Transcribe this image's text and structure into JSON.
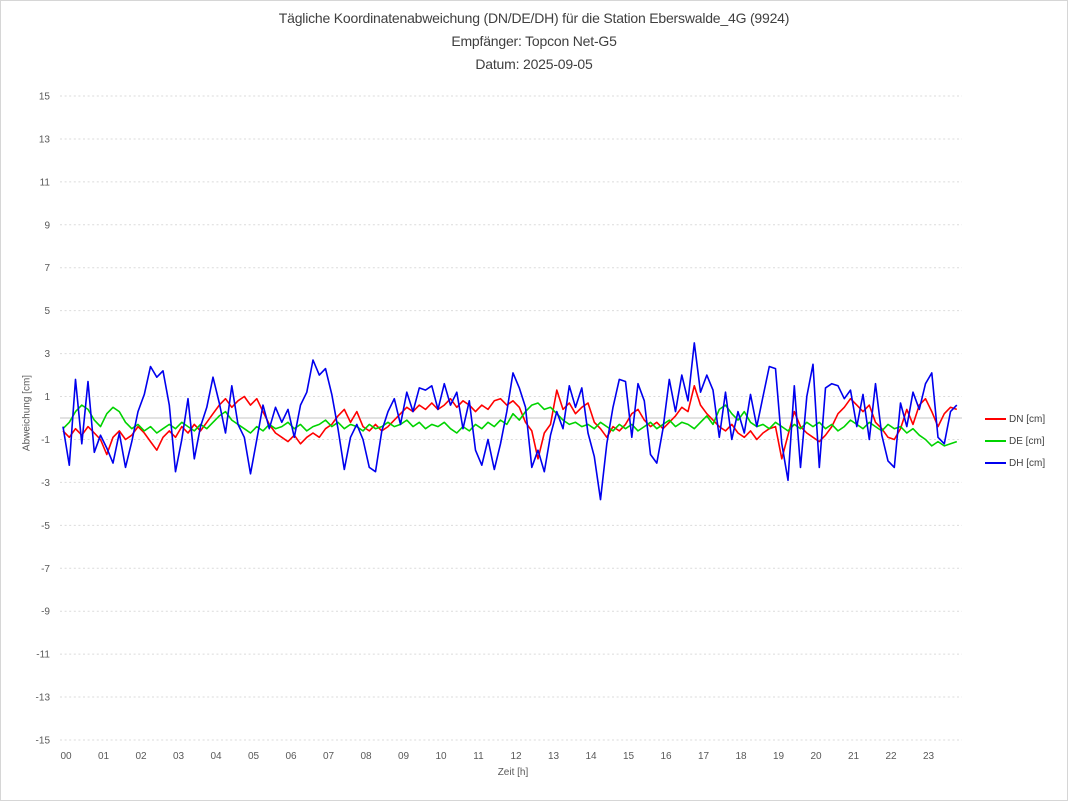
{
  "title": {
    "line1": "Tägliche Koordinatenabweichung (DN/DE/DH) für die Station Eberswalde_4G (9924)",
    "line2": "Empfänger: Topcon Net-G5",
    "line3": "Datum: 2025-09-05"
  },
  "chart_data": {
    "type": "line",
    "title": "Tägliche Koordinatenabweichung (DN/DE/DH) für die Station Eberswalde_4G (9924)",
    "subtitle": "Empfänger: Topcon Net-G5",
    "date_label": "Datum: 2025-09-05",
    "xlabel": "Zeit [h]",
    "ylabel": "Abweichung [cm]",
    "xlim": [
      0,
      24
    ],
    "ylim": [
      -15,
      15
    ],
    "x_ticks": [
      "00",
      "01",
      "02",
      "03",
      "04",
      "05",
      "06",
      "07",
      "08",
      "09",
      "10",
      "11",
      "12",
      "13",
      "14",
      "15",
      "16",
      "17",
      "18",
      "19",
      "20",
      "21",
      "22",
      "23"
    ],
    "y_ticks": [
      15,
      13,
      11,
      9,
      7,
      5,
      3,
      1,
      -1,
      -3,
      -5,
      -7,
      -9,
      -11,
      -13,
      -15
    ],
    "grid": "horizontal dashed gridlines at odd values, solid line at 0, no vertical gridlines",
    "legend_position": "right-middle",
    "x_start": 0,
    "x_step_hours": 0.1666667,
    "series": [
      {
        "name": "DN [cm]",
        "color": "#ff0000",
        "values": [
          -0.6,
          -0.9,
          -0.5,
          -0.8,
          -0.4,
          -0.7,
          -1.0,
          -1.7,
          -0.9,
          -0.6,
          -1.0,
          -0.8,
          -0.4,
          -0.7,
          -1.1,
          -1.5,
          -0.9,
          -0.6,
          -0.9,
          -0.4,
          -0.7,
          -0.3,
          -0.6,
          -0.2,
          0.2,
          0.6,
          0.9,
          0.5,
          0.8,
          1.0,
          0.6,
          0.9,
          0.3,
          -0.3,
          -0.7,
          -0.9,
          -1.1,
          -0.8,
          -1.2,
          -0.9,
          -0.7,
          -0.9,
          -0.5,
          -0.3,
          0.1,
          0.4,
          -0.2,
          0.3,
          -0.4,
          -0.6,
          -0.3,
          -0.6,
          -0.4,
          -0.1,
          0.2,
          0.5,
          0.3,
          0.6,
          0.4,
          0.7,
          0.4,
          0.6,
          0.9,
          0.5,
          0.8,
          0.6,
          0.3,
          0.6,
          0.4,
          0.8,
          0.9,
          0.6,
          0.8,
          0.5,
          -0.2,
          -0.6,
          -1.9,
          -0.7,
          -0.3,
          1.3,
          0.4,
          0.7,
          0.2,
          0.5,
          0.7,
          -0.2,
          -0.5,
          -0.9,
          -0.4,
          -0.6,
          -0.3,
          0.2,
          0.4,
          -0.1,
          -0.4,
          -0.2,
          -0.5,
          -0.2,
          0.1,
          0.5,
          0.3,
          1.5,
          0.6,
          0.2,
          -0.1,
          -0.4,
          -0.6,
          -0.3,
          -0.7,
          -0.9,
          -0.6,
          -1.0,
          -0.7,
          -0.5,
          -0.4,
          -1.9,
          -0.8,
          0.3,
          -0.4,
          -0.7,
          -0.9,
          -1.1,
          -0.8,
          -0.4,
          0.2,
          0.5,
          0.9,
          0.6,
          0.3,
          0.6,
          -0.2,
          -0.5,
          -0.9,
          -1.0,
          -0.5,
          0.4,
          -0.3,
          0.6,
          0.9,
          0.3,
          -0.4,
          0.2,
          0.5,
          0.4
        ]
      },
      {
        "name": "DE [cm]",
        "color": "#00d300",
        "values": [
          -0.5,
          -0.2,
          0.3,
          0.6,
          0.4,
          -0.1,
          -0.4,
          0.2,
          0.5,
          0.3,
          -0.2,
          -0.5,
          -0.3,
          -0.6,
          -0.4,
          -0.7,
          -0.5,
          -0.3,
          -0.5,
          -0.2,
          -0.4,
          -0.6,
          -0.3,
          -0.5,
          -0.2,
          0.1,
          0.3,
          -0.1,
          -0.3,
          -0.5,
          -0.7,
          -0.4,
          -0.6,
          -0.3,
          -0.5,
          -0.4,
          -0.2,
          -0.5,
          -0.3,
          -0.6,
          -0.4,
          -0.3,
          -0.1,
          -0.4,
          -0.2,
          -0.5,
          -0.3,
          -0.4,
          -0.6,
          -0.3,
          -0.5,
          -0.4,
          -0.2,
          -0.4,
          -0.3,
          -0.1,
          -0.4,
          -0.2,
          -0.5,
          -0.3,
          -0.4,
          -0.2,
          -0.5,
          -0.7,
          -0.4,
          -0.6,
          -0.3,
          -0.5,
          -0.2,
          -0.4,
          -0.1,
          -0.3,
          0.2,
          -0.1,
          0.3,
          0.6,
          0.7,
          0.4,
          0.5,
          0.2,
          -0.1,
          -0.3,
          -0.2,
          -0.4,
          -0.3,
          -0.5,
          -0.2,
          -0.4,
          -0.6,
          -0.3,
          -0.5,
          -0.3,
          -0.6,
          -0.4,
          -0.2,
          -0.5,
          -0.3,
          -0.1,
          -0.4,
          -0.2,
          -0.3,
          -0.5,
          -0.2,
          0.1,
          -0.3,
          0.4,
          0.6,
          0.2,
          -0.1,
          0.3,
          -0.2,
          -0.4,
          -0.3,
          -0.5,
          -0.2,
          -0.4,
          -0.6,
          -0.3,
          -0.5,
          -0.2,
          -0.4,
          -0.2,
          -0.5,
          -0.3,
          -0.6,
          -0.4,
          -0.1,
          -0.3,
          -0.5,
          -0.2,
          -0.4,
          -0.6,
          -0.3,
          -0.5,
          -0.4,
          -0.7,
          -0.5,
          -0.8,
          -1.0,
          -1.3,
          -1.1,
          -1.3,
          -1.2,
          -1.1
        ]
      },
      {
        "name": "DH [cm]",
        "color": "#0000ee",
        "values": [
          -0.4,
          -2.2,
          1.8,
          -1.2,
          1.7,
          -1.6,
          -0.8,
          -1.4,
          -2.1,
          -0.7,
          -2.3,
          -1.1,
          0.3,
          1.1,
          2.4,
          1.9,
          2.2,
          0.6,
          -2.5,
          -1.0,
          0.9,
          -1.9,
          -0.4,
          0.5,
          1.9,
          0.7,
          -0.7,
          1.5,
          -0.3,
          -0.9,
          -2.6,
          -1.0,
          0.6,
          -0.5,
          0.5,
          -0.2,
          0.4,
          -0.9,
          0.6,
          1.2,
          2.7,
          2.0,
          2.3,
          1.1,
          -0.5,
          -2.4,
          -0.9,
          -0.3,
          -1.0,
          -2.3,
          -2.5,
          -0.6,
          0.3,
          0.9,
          -0.3,
          1.2,
          0.3,
          1.4,
          1.3,
          1.5,
          0.4,
          1.6,
          0.6,
          1.2,
          -0.5,
          0.8,
          -1.5,
          -2.2,
          -1.0,
          -2.4,
          -1.2,
          0.3,
          2.1,
          1.4,
          0.5,
          -2.3,
          -1.5,
          -2.5,
          -0.8,
          0.3,
          -0.5,
          1.5,
          0.5,
          1.4,
          -0.7,
          -1.8,
          -3.8,
          -1.2,
          0.5,
          1.8,
          1.7,
          -0.9,
          1.6,
          0.8,
          -1.7,
          -2.1,
          -0.5,
          1.8,
          0.3,
          2.0,
          0.8,
          3.5,
          1.2,
          2.0,
          1.3,
          -0.9,
          1.2,
          -1.0,
          0.3,
          -0.7,
          1.1,
          -0.4,
          1.0,
          2.4,
          2.3,
          -1.2,
          -2.9,
          1.5,
          -2.3,
          1.0,
          2.5,
          -2.3,
          1.4,
          1.6,
          1.5,
          0.9,
          1.3,
          -0.4,
          1.1,
          -1.0,
          1.6,
          -0.8,
          -2.0,
          -2.3,
          0.7,
          -0.4,
          1.2,
          0.4,
          1.6,
          2.1,
          -0.9,
          -1.2,
          0.3,
          0.6
        ]
      }
    ]
  }
}
